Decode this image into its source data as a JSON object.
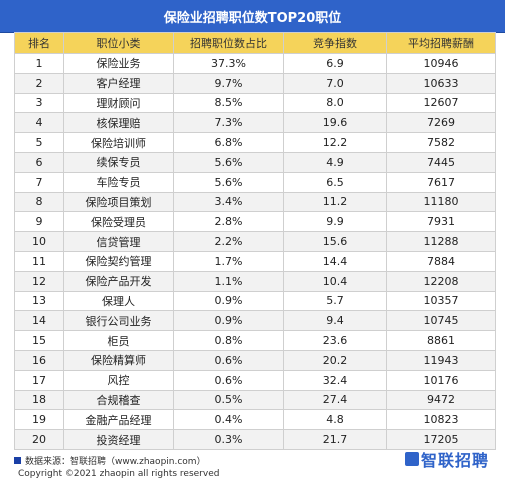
{
  "title": "保险业招聘职位数TOP20职位",
  "headers": [
    "排名",
    "职位小类",
    "招聘职位数占比",
    "竞争指数",
    "平均招聘薪酬"
  ],
  "rows": [
    [
      "1",
      "保险业务",
      "37.3%",
      "6.9",
      "10946"
    ],
    [
      "2",
      "客户经理",
      "9.7%",
      "7.0",
      "10633"
    ],
    [
      "3",
      "理财顾问",
      "8.5%",
      "8.0",
      "12607"
    ],
    [
      "4",
      "核保理赔",
      "7.3%",
      "19.6",
      "7269"
    ],
    [
      "5",
      "保险培训师",
      "6.8%",
      "12.2",
      "7582"
    ],
    [
      "6",
      "续保专员",
      "5.6%",
      "4.9",
      "7445"
    ],
    [
      "7",
      "车险专员",
      "5.6%",
      "6.5",
      "7617"
    ],
    [
      "8",
      "保险项目策划",
      "3.4%",
      "11.2",
      "11180"
    ],
    [
      "9",
      "保险受理员",
      "2.8%",
      "9.9",
      "7931"
    ],
    [
      "10",
      "信贷管理",
      "2.2%",
      "15.6",
      "11288"
    ],
    [
      "11",
      "保险契约管理",
      "1.7%",
      "14.4",
      "7884"
    ],
    [
      "12",
      "保险产品开发",
      "1.1%",
      "10.4",
      "12208"
    ],
    [
      "13",
      "保理人",
      "0.9%",
      "5.7",
      "10357"
    ],
    [
      "14",
      "银行公司业务",
      "0.9%",
      "9.4",
      "10745"
    ],
    [
      "15",
      "柜员",
      "0.8%",
      "23.6",
      "8861"
    ],
    [
      "16",
      "保险精算师",
      "0.6%",
      "20.2",
      "11943"
    ],
    [
      "17",
      "风控",
      "0.6%",
      "32.4",
      "10176"
    ],
    [
      "18",
      "合规稽查",
      "0.5%",
      "27.4",
      "9472"
    ],
    [
      "19",
      "金融产品经理",
      "0.4%",
      "4.8",
      "10823"
    ],
    [
      "20",
      "投资经理",
      "0.3%",
      "21.7",
      "17205"
    ]
  ],
  "footer": {
    "source": "数据来源：智联招聘（www.zhaopin.com）",
    "copyright": "Copyright ©2021 zhaopin all rights reserved"
  },
  "logo_text": "智联招聘",
  "colors": {
    "title_bg": "#2f63c9",
    "header_bg": "#f5d35a",
    "alt_row_bg": "#f2f2f2",
    "brand": "#2f63c9"
  }
}
